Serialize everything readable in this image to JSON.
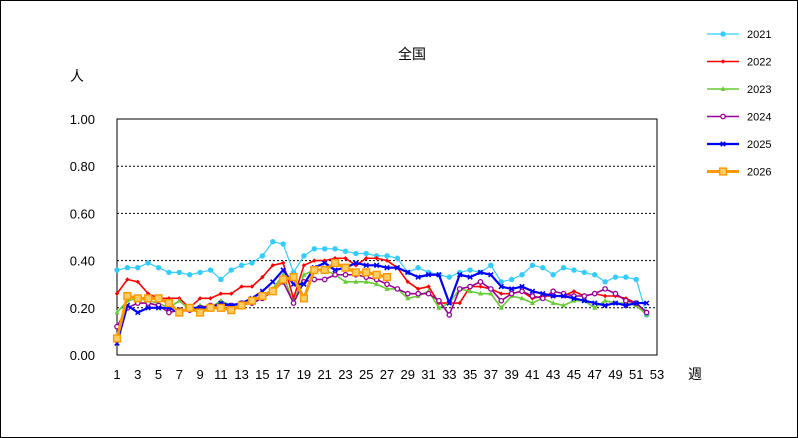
{
  "chart_data": {
    "type": "line",
    "title": "全国",
    "ylabel": "人",
    "xlabel": "週",
    "ylim": [
      0,
      1.0
    ],
    "xlim": [
      1,
      53
    ],
    "yticks": [
      "0.00",
      "0.20",
      "0.40",
      "0.60",
      "0.80",
      "1.00"
    ],
    "ytick_values": [
      0,
      0.2,
      0.4,
      0.6,
      0.8,
      1.0
    ],
    "xticks": [
      1,
      3,
      5,
      7,
      9,
      11,
      13,
      15,
      17,
      19,
      21,
      23,
      25,
      27,
      29,
      31,
      33,
      35,
      37,
      39,
      41,
      43,
      45,
      47,
      49,
      51,
      53
    ],
    "grid": "horizontal-dashed",
    "legend_position": "right",
    "series": [
      {
        "name": "2021",
        "color": "#33ccff",
        "marker": "circle",
        "values": [
          0.36,
          0.37,
          0.37,
          0.39,
          0.37,
          0.35,
          0.35,
          0.34,
          0.35,
          0.36,
          0.32,
          0.36,
          0.38,
          0.39,
          0.42,
          0.48,
          0.47,
          0.35,
          0.42,
          0.45,
          0.45,
          0.45,
          0.44,
          0.43,
          0.43,
          0.42,
          0.42,
          0.41,
          0.35,
          0.37,
          0.35,
          0.34,
          0.33,
          0.35,
          0.36,
          0.35,
          0.38,
          0.31,
          0.32,
          0.34,
          0.38,
          0.37,
          0.34,
          0.37,
          0.36,
          0.35,
          0.34,
          0.31,
          0.33,
          0.33,
          0.32,
          0.17
        ]
      },
      {
        "name": "2022",
        "color": "#ff0000",
        "marker": "diamond",
        "values": [
          0.26,
          0.32,
          0.31,
          0.26,
          0.24,
          0.24,
          0.24,
          0.2,
          0.24,
          0.24,
          0.26,
          0.26,
          0.29,
          0.29,
          0.33,
          0.38,
          0.39,
          0.24,
          0.38,
          0.4,
          0.4,
          0.41,
          0.41,
          0.38,
          0.41,
          0.41,
          0.4,
          0.37,
          0.31,
          0.28,
          0.29,
          0.22,
          0.22,
          0.22,
          0.29,
          0.29,
          0.28,
          0.26,
          0.26,
          0.27,
          0.24,
          0.25,
          0.25,
          0.25,
          0.27,
          0.25,
          0.26,
          0.25,
          0.25,
          0.24,
          0.22,
          0.18
        ]
      },
      {
        "name": "2023",
        "color": "#66cc33",
        "marker": "triangle",
        "values": [
          0.18,
          0.23,
          0.24,
          0.23,
          0.22,
          0.2,
          0.23,
          0.19,
          0.21,
          0.2,
          0.23,
          0.21,
          0.21,
          0.22,
          0.25,
          0.28,
          0.34,
          0.22,
          0.34,
          0.36,
          0.36,
          0.34,
          0.31,
          0.31,
          0.31,
          0.3,
          0.28,
          0.28,
          0.24,
          0.25,
          0.27,
          0.2,
          0.22,
          0.28,
          0.27,
          0.26,
          0.26,
          0.2,
          0.25,
          0.24,
          0.22,
          0.24,
          0.22,
          0.21,
          0.23,
          0.23,
          0.2,
          0.23,
          0.22,
          0.22,
          0.21,
          0.17
        ]
      },
      {
        "name": "2024",
        "color": "#990099",
        "marker": "circle-open",
        "values": [
          0.12,
          0.2,
          0.22,
          0.22,
          0.21,
          0.18,
          0.19,
          0.19,
          0.2,
          0.21,
          0.21,
          0.21,
          0.22,
          0.22,
          0.24,
          0.27,
          0.31,
          0.22,
          0.31,
          0.32,
          0.32,
          0.34,
          0.34,
          0.34,
          0.33,
          0.32,
          0.3,
          0.28,
          0.26,
          0.26,
          0.26,
          0.23,
          0.17,
          0.28,
          0.29,
          0.31,
          0.28,
          0.23,
          0.26,
          0.27,
          0.25,
          0.24,
          0.27,
          0.26,
          0.25,
          0.25,
          0.26,
          0.28,
          0.26,
          0.23,
          0.22,
          0.18
        ]
      },
      {
        "name": "2025",
        "color": "#0000ff",
        "marker": "x",
        "values": [
          0.05,
          0.21,
          0.18,
          0.2,
          0.2,
          0.2,
          0.18,
          0.2,
          0.2,
          0.2,
          0.22,
          0.21,
          0.22,
          0.24,
          0.27,
          0.31,
          0.36,
          0.3,
          0.3,
          0.37,
          0.39,
          0.36,
          0.37,
          0.39,
          0.38,
          0.38,
          0.37,
          0.37,
          0.35,
          0.33,
          0.34,
          0.34,
          0.22,
          0.34,
          0.33,
          0.35,
          0.34,
          0.29,
          0.28,
          0.29,
          0.27,
          0.26,
          0.25,
          0.25,
          0.24,
          0.23,
          0.22,
          0.21,
          0.22,
          0.21,
          0.22,
          0.22
        ]
      },
      {
        "name": "2026",
        "color": "#ff9900",
        "marker": "square",
        "values": [
          0.07,
          0.25,
          0.24,
          0.24,
          0.24,
          0.22,
          0.18,
          0.2,
          0.18,
          0.2,
          0.2,
          0.19,
          0.21,
          0.23,
          0.25,
          0.27,
          0.32,
          0.33,
          0.24,
          0.36,
          0.36,
          0.39,
          0.37,
          0.35,
          0.35,
          0.34,
          0.33
        ]
      }
    ]
  }
}
